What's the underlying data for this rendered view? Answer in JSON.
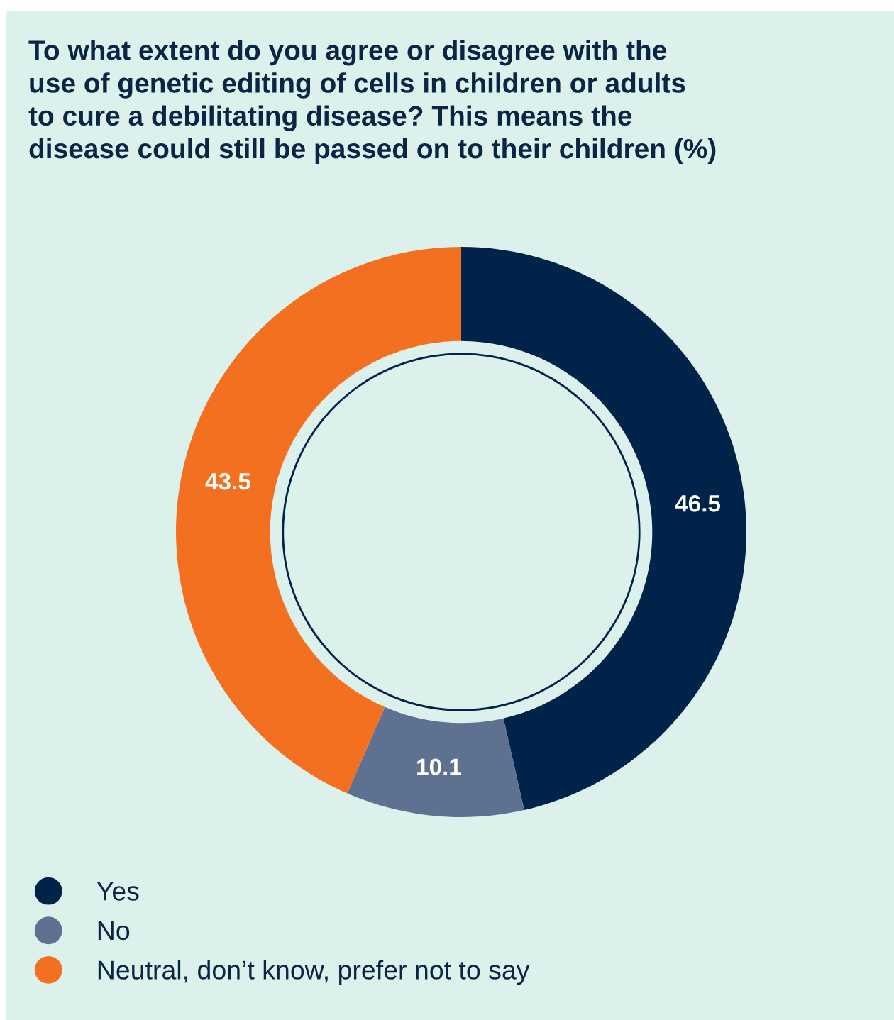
{
  "chart_data": {
    "type": "donut",
    "title": "To what extent do you agree or disagree with the\nuse of genetic editing of cells in children or adults\nto cure a debilitating disease? This means the\ndisease could still be passed on to their children (%)",
    "categories": [
      "Yes",
      "No",
      "Neutral, don’t know, prefer not to say"
    ],
    "values": [
      46.5,
      10.1,
      43.5
    ],
    "colors": [
      "#00234a",
      "#5e7190",
      "#f37021"
    ],
    "data_labels": true,
    "legend": "bottom left"
  }
}
